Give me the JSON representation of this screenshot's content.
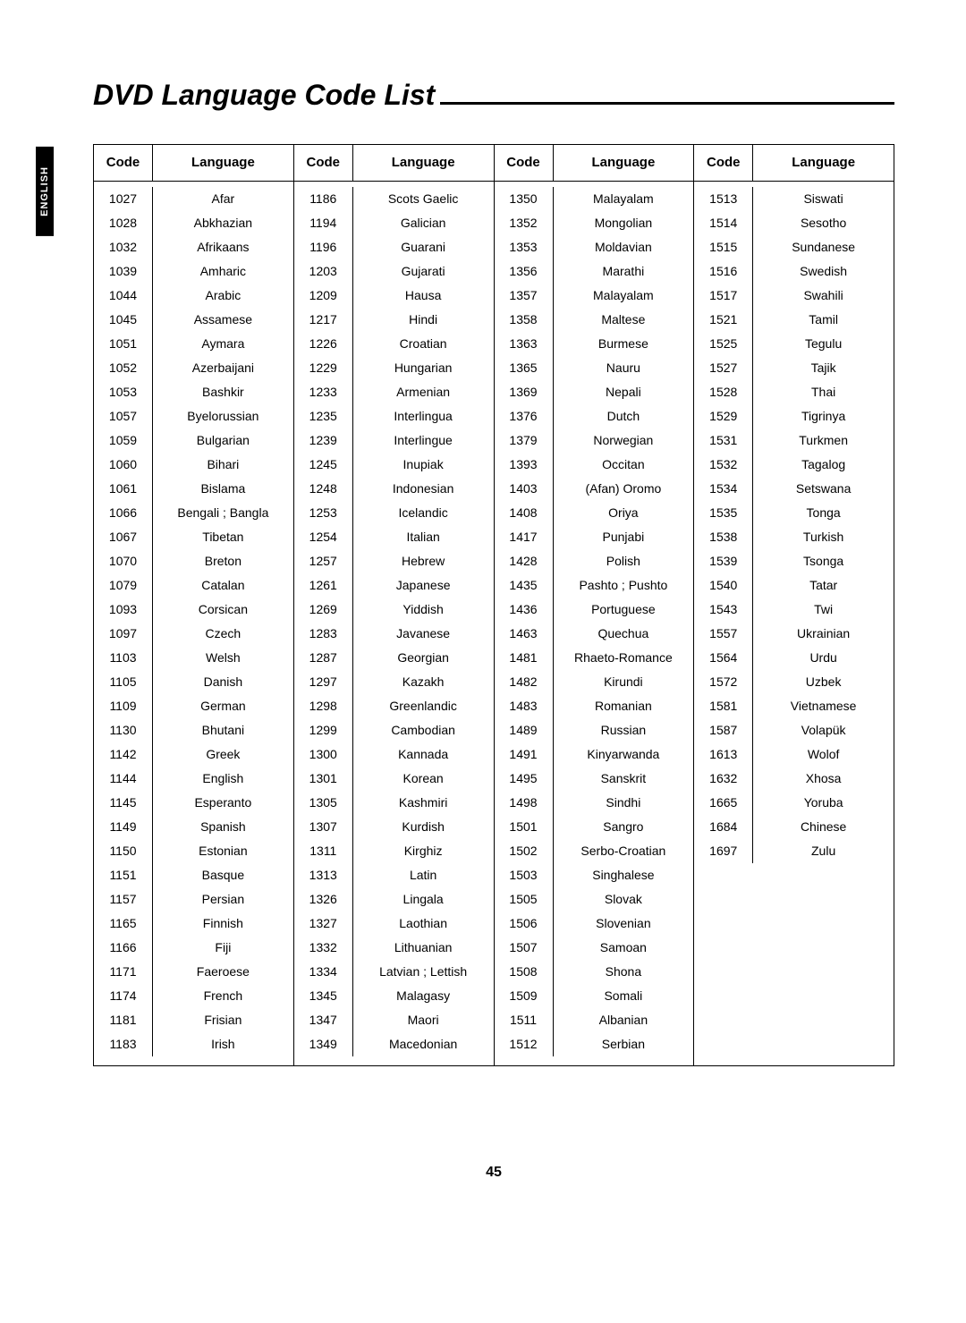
{
  "side_tab": "ENGLISH",
  "title": "DVD Language Code List",
  "page_number": "45",
  "headers": {
    "code": "Code",
    "language": "Language"
  },
  "table": {
    "type": "table",
    "text_fontsize": 14,
    "header_fontsize": 15,
    "border_color": "#000000",
    "background_color": "#ffffff",
    "text_color": "#000000"
  },
  "columns": [
    [
      {
        "code": "1027",
        "lang": "Afar"
      },
      {
        "code": "1028",
        "lang": "Abkhazian"
      },
      {
        "code": "1032",
        "lang": "Afrikaans"
      },
      {
        "code": "1039",
        "lang": "Amharic"
      },
      {
        "code": "1044",
        "lang": "Arabic"
      },
      {
        "code": "1045",
        "lang": "Assamese"
      },
      {
        "code": "1051",
        "lang": "Aymara"
      },
      {
        "code": "1052",
        "lang": "Azerbaijani"
      },
      {
        "code": "1053",
        "lang": "Bashkir"
      },
      {
        "code": "1057",
        "lang": "Byelorussian"
      },
      {
        "code": "1059",
        "lang": "Bulgarian"
      },
      {
        "code": "1060",
        "lang": "Bihari"
      },
      {
        "code": "1061",
        "lang": "Bislama"
      },
      {
        "code": "1066",
        "lang": "Bengali ; Bangla"
      },
      {
        "code": "1067",
        "lang": "Tibetan"
      },
      {
        "code": "1070",
        "lang": "Breton"
      },
      {
        "code": "1079",
        "lang": "Catalan"
      },
      {
        "code": "1093",
        "lang": "Corsican"
      },
      {
        "code": "1097",
        "lang": "Czech"
      },
      {
        "code": "1103",
        "lang": "Welsh"
      },
      {
        "code": "1105",
        "lang": "Danish"
      },
      {
        "code": "1109",
        "lang": "German"
      },
      {
        "code": "1130",
        "lang": "Bhutani"
      },
      {
        "code": "1142",
        "lang": "Greek"
      },
      {
        "code": "1144",
        "lang": "English"
      },
      {
        "code": "1145",
        "lang": "Esperanto"
      },
      {
        "code": "1149",
        "lang": "Spanish"
      },
      {
        "code": "1150",
        "lang": "Estonian"
      },
      {
        "code": "1151",
        "lang": "Basque"
      },
      {
        "code": "1157",
        "lang": "Persian"
      },
      {
        "code": "1165",
        "lang": "Finnish"
      },
      {
        "code": "1166",
        "lang": "Fiji"
      },
      {
        "code": "1171",
        "lang": "Faeroese"
      },
      {
        "code": "1174",
        "lang": "French"
      },
      {
        "code": "1181",
        "lang": "Frisian"
      },
      {
        "code": "1183",
        "lang": "Irish"
      }
    ],
    [
      {
        "code": "1186",
        "lang": "Scots Gaelic"
      },
      {
        "code": "1194",
        "lang": "Galician"
      },
      {
        "code": "1196",
        "lang": "Guarani"
      },
      {
        "code": "1203",
        "lang": "Gujarati"
      },
      {
        "code": "1209",
        "lang": "Hausa"
      },
      {
        "code": "1217",
        "lang": "Hindi"
      },
      {
        "code": "1226",
        "lang": "Croatian"
      },
      {
        "code": "1229",
        "lang": "Hungarian"
      },
      {
        "code": "1233",
        "lang": "Armenian"
      },
      {
        "code": "1235",
        "lang": "Interlingua"
      },
      {
        "code": "1239",
        "lang": "Interlingue"
      },
      {
        "code": "1245",
        "lang": "Inupiak"
      },
      {
        "code": "1248",
        "lang": "Indonesian"
      },
      {
        "code": "1253",
        "lang": "Icelandic"
      },
      {
        "code": "1254",
        "lang": "Italian"
      },
      {
        "code": "1257",
        "lang": "Hebrew"
      },
      {
        "code": "1261",
        "lang": "Japanese"
      },
      {
        "code": "1269",
        "lang": "Yiddish"
      },
      {
        "code": "1283",
        "lang": "Javanese"
      },
      {
        "code": "1287",
        "lang": "Georgian"
      },
      {
        "code": "1297",
        "lang": "Kazakh"
      },
      {
        "code": "1298",
        "lang": "Greenlandic"
      },
      {
        "code": "1299",
        "lang": "Cambodian"
      },
      {
        "code": "1300",
        "lang": "Kannada"
      },
      {
        "code": "1301",
        "lang": "Korean"
      },
      {
        "code": "1305",
        "lang": "Kashmiri"
      },
      {
        "code": "1307",
        "lang": "Kurdish"
      },
      {
        "code": "1311",
        "lang": "Kirghiz"
      },
      {
        "code": "1313",
        "lang": "Latin"
      },
      {
        "code": "1326",
        "lang": "Lingala"
      },
      {
        "code": "1327",
        "lang": "Laothian"
      },
      {
        "code": "1332",
        "lang": "Lithuanian"
      },
      {
        "code": "1334",
        "lang": "Latvian ; Lettish"
      },
      {
        "code": "1345",
        "lang": "Malagasy"
      },
      {
        "code": "1347",
        "lang": "Maori"
      },
      {
        "code": "1349",
        "lang": "Macedonian"
      }
    ],
    [
      {
        "code": "1350",
        "lang": "Malayalam"
      },
      {
        "code": "1352",
        "lang": "Mongolian"
      },
      {
        "code": "1353",
        "lang": "Moldavian"
      },
      {
        "code": "1356",
        "lang": "Marathi"
      },
      {
        "code": "1357",
        "lang": "Malayalam"
      },
      {
        "code": "1358",
        "lang": "Maltese"
      },
      {
        "code": "1363",
        "lang": "Burmese"
      },
      {
        "code": "1365",
        "lang": "Nauru"
      },
      {
        "code": "1369",
        "lang": "Nepali"
      },
      {
        "code": "1376",
        "lang": "Dutch"
      },
      {
        "code": "1379",
        "lang": "Norwegian"
      },
      {
        "code": "1393",
        "lang": "Occitan"
      },
      {
        "code": "1403",
        "lang": "(Afan) Oromo"
      },
      {
        "code": "1408",
        "lang": "Oriya"
      },
      {
        "code": "1417",
        "lang": "Punjabi"
      },
      {
        "code": "1428",
        "lang": "Polish"
      },
      {
        "code": "1435",
        "lang": "Pashto ; Pushto"
      },
      {
        "code": "1436",
        "lang": "Portuguese"
      },
      {
        "code": "1463",
        "lang": "Quechua"
      },
      {
        "code": "1481",
        "lang": "Rhaeto-Romance"
      },
      {
        "code": "1482",
        "lang": "Kirundi"
      },
      {
        "code": "1483",
        "lang": "Romanian"
      },
      {
        "code": "1489",
        "lang": "Russian"
      },
      {
        "code": "1491",
        "lang": "Kinyarwanda"
      },
      {
        "code": "1495",
        "lang": "Sanskrit"
      },
      {
        "code": "1498",
        "lang": "Sindhi"
      },
      {
        "code": "1501",
        "lang": "Sangro"
      },
      {
        "code": "1502",
        "lang": "Serbo-Croatian"
      },
      {
        "code": "1503",
        "lang": "Singhalese"
      },
      {
        "code": "1505",
        "lang": "Slovak"
      },
      {
        "code": "1506",
        "lang": "Slovenian"
      },
      {
        "code": "1507",
        "lang": "Samoan"
      },
      {
        "code": "1508",
        "lang": "Shona"
      },
      {
        "code": "1509",
        "lang": "Somali"
      },
      {
        "code": "1511",
        "lang": "Albanian"
      },
      {
        "code": "1512",
        "lang": "Serbian"
      }
    ],
    [
      {
        "code": "1513",
        "lang": "Siswati"
      },
      {
        "code": "1514",
        "lang": "Sesotho"
      },
      {
        "code": "1515",
        "lang": "Sundanese"
      },
      {
        "code": "1516",
        "lang": "Swedish"
      },
      {
        "code": "1517",
        "lang": "Swahili"
      },
      {
        "code": "1521",
        "lang": "Tamil"
      },
      {
        "code": "1525",
        "lang": "Tegulu"
      },
      {
        "code": "1527",
        "lang": "Tajik"
      },
      {
        "code": "1528",
        "lang": "Thai"
      },
      {
        "code": "1529",
        "lang": "Tigrinya"
      },
      {
        "code": "1531",
        "lang": "Turkmen"
      },
      {
        "code": "1532",
        "lang": "Tagalog"
      },
      {
        "code": "1534",
        "lang": "Setswana"
      },
      {
        "code": "1535",
        "lang": "Tonga"
      },
      {
        "code": "1538",
        "lang": "Turkish"
      },
      {
        "code": "1539",
        "lang": "Tsonga"
      },
      {
        "code": "1540",
        "lang": "Tatar"
      },
      {
        "code": "1543",
        "lang": "Twi"
      },
      {
        "code": "1557",
        "lang": "Ukrainian"
      },
      {
        "code": "1564",
        "lang": "Urdu"
      },
      {
        "code": "1572",
        "lang": "Uzbek"
      },
      {
        "code": "1581",
        "lang": "Vietnamese"
      },
      {
        "code": "1587",
        "lang": "Volapük"
      },
      {
        "code": "1613",
        "lang": "Wolof"
      },
      {
        "code": "1632",
        "lang": "Xhosa"
      },
      {
        "code": "1665",
        "lang": "Yoruba"
      },
      {
        "code": "1684",
        "lang": "Chinese"
      },
      {
        "code": "1697",
        "lang": "Zulu"
      }
    ]
  ]
}
